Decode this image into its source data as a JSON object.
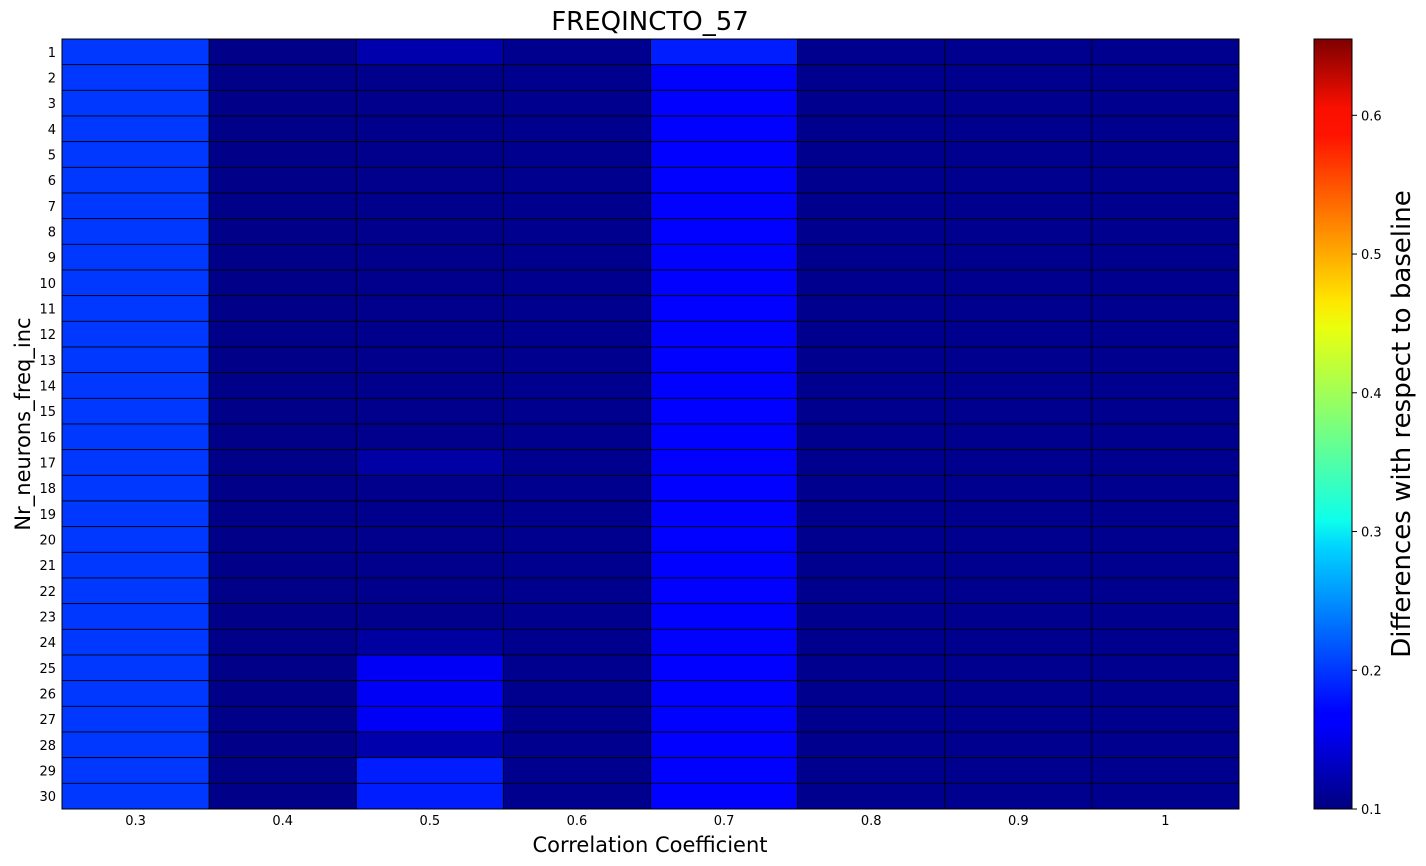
{
  "chart_data": {
    "type": "heatmap",
    "title": "FREQINCTO_57",
    "xlabel": "Correlation Coefficient",
    "ylabel": "Nr_neurons_freq_inc",
    "x_categories": [
      "0.3",
      "0.4",
      "0.5",
      "0.6",
      "0.7",
      "0.8",
      "0.9",
      "1"
    ],
    "y_categories": [
      "1",
      "2",
      "3",
      "4",
      "5",
      "6",
      "7",
      "8",
      "9",
      "10",
      "11",
      "12",
      "13",
      "14",
      "15",
      "16",
      "17",
      "18",
      "19",
      "20",
      "21",
      "22",
      "23",
      "24",
      "25",
      "26",
      "27",
      "28",
      "29",
      "30"
    ],
    "colorbar": {
      "label": "Differences with respect to baseline",
      "colormap": "jet",
      "range": [
        0.1,
        0.655
      ],
      "ticks": [
        "0.1",
        "0.2",
        "0.3",
        "0.4",
        "0.5",
        "0.6"
      ]
    },
    "column_values": [
      [
        0.2,
        0.2,
        0.2,
        0.2,
        0.2,
        0.2,
        0.2,
        0.2,
        0.2,
        0.2,
        0.2,
        0.2,
        0.2,
        0.2,
        0.2,
        0.2,
        0.2,
        0.2,
        0.2,
        0.2,
        0.2,
        0.2,
        0.2,
        0.2,
        0.2,
        0.2,
        0.2,
        0.2,
        0.2,
        0.2
      ],
      [
        0.105,
        0.105,
        0.105,
        0.105,
        0.105,
        0.105,
        0.105,
        0.105,
        0.105,
        0.105,
        0.105,
        0.105,
        0.105,
        0.105,
        0.105,
        0.105,
        0.105,
        0.105,
        0.105,
        0.105,
        0.105,
        0.105,
        0.105,
        0.105,
        0.105,
        0.105,
        0.105,
        0.105,
        0.105,
        0.105
      ],
      [
        0.125,
        0.107,
        0.107,
        0.107,
        0.107,
        0.107,
        0.107,
        0.107,
        0.107,
        0.107,
        0.107,
        0.107,
        0.107,
        0.107,
        0.107,
        0.107,
        0.12,
        0.107,
        0.107,
        0.107,
        0.107,
        0.107,
        0.107,
        0.118,
        0.165,
        0.165,
        0.165,
        0.125,
        0.185,
        0.185
      ],
      [
        0.108,
        0.108,
        0.108,
        0.108,
        0.108,
        0.108,
        0.108,
        0.108,
        0.108,
        0.108,
        0.108,
        0.108,
        0.108,
        0.108,
        0.108,
        0.108,
        0.108,
        0.108,
        0.108,
        0.108,
        0.108,
        0.108,
        0.108,
        0.108,
        0.108,
        0.108,
        0.108,
        0.108,
        0.108,
        0.108
      ],
      [
        0.185,
        0.17,
        0.17,
        0.17,
        0.17,
        0.17,
        0.17,
        0.17,
        0.17,
        0.17,
        0.17,
        0.17,
        0.17,
        0.17,
        0.17,
        0.17,
        0.17,
        0.17,
        0.17,
        0.17,
        0.17,
        0.17,
        0.17,
        0.17,
        0.17,
        0.17,
        0.17,
        0.17,
        0.17,
        0.17
      ],
      [
        0.108,
        0.108,
        0.108,
        0.108,
        0.108,
        0.108,
        0.108,
        0.108,
        0.108,
        0.108,
        0.108,
        0.108,
        0.108,
        0.108,
        0.108,
        0.108,
        0.108,
        0.108,
        0.108,
        0.108,
        0.108,
        0.108,
        0.108,
        0.108,
        0.108,
        0.108,
        0.108,
        0.108,
        0.108,
        0.108
      ],
      [
        0.108,
        0.108,
        0.108,
        0.108,
        0.108,
        0.108,
        0.108,
        0.108,
        0.108,
        0.108,
        0.108,
        0.108,
        0.108,
        0.108,
        0.108,
        0.108,
        0.108,
        0.108,
        0.108,
        0.108,
        0.108,
        0.108,
        0.108,
        0.108,
        0.108,
        0.108,
        0.108,
        0.108,
        0.108,
        0.108
      ],
      [
        0.108,
        0.108,
        0.108,
        0.108,
        0.108,
        0.108,
        0.108,
        0.108,
        0.108,
        0.108,
        0.108,
        0.108,
        0.108,
        0.108,
        0.108,
        0.108,
        0.108,
        0.108,
        0.108,
        0.108,
        0.108,
        0.108,
        0.108,
        0.108,
        0.108,
        0.108,
        0.108,
        0.108,
        0.108,
        0.108
      ]
    ]
  }
}
